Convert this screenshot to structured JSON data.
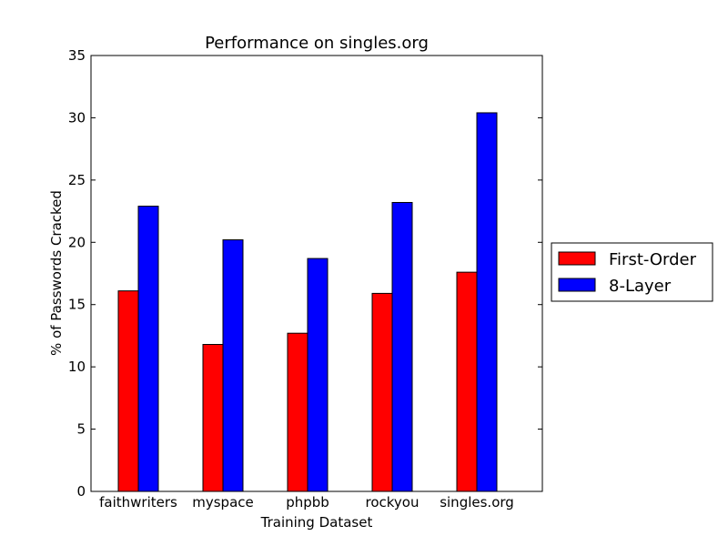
{
  "chart_data": {
    "type": "bar",
    "title": "Performance on singles.org",
    "xlabel": "Training Dataset",
    "ylabel": "% of Passwords Cracked",
    "ylim": [
      0,
      35
    ],
    "yticks": [
      0,
      5,
      10,
      15,
      20,
      25,
      30,
      35
    ],
    "categories": [
      "faithwriters",
      "myspace",
      "phpbb",
      "rockyou",
      "singles.org"
    ],
    "series": [
      {
        "name": "First-Order",
        "color": "#ff0000",
        "values": [
          16.1,
          11.8,
          12.7,
          15.9,
          17.6
        ]
      },
      {
        "name": "8-Layer",
        "color": "#0000ff",
        "values": [
          22.9,
          20.2,
          18.7,
          23.2,
          30.4
        ]
      }
    ],
    "grid": false,
    "legend_position": "right"
  }
}
